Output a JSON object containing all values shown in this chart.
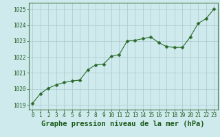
{
  "x": [
    0,
    1,
    2,
    3,
    4,
    5,
    6,
    7,
    8,
    9,
    10,
    11,
    12,
    13,
    14,
    15,
    16,
    17,
    18,
    19,
    20,
    21,
    22,
    23
  ],
  "y": [
    1019.1,
    1019.7,
    1020.05,
    1020.25,
    1020.4,
    1020.5,
    1020.55,
    1021.2,
    1021.5,
    1021.55,
    1022.05,
    1022.15,
    1023.0,
    1023.05,
    1023.15,
    1023.25,
    1022.9,
    1022.65,
    1022.6,
    1022.6,
    1023.25,
    1024.1,
    1024.4,
    1025.0
  ],
  "line_color": "#2a6b2a",
  "marker": "D",
  "marker_size": 2.5,
  "bg_color": "#ceeaed",
  "grid_color": "#aac8cc",
  "border_color": "#4a7a4a",
  "xlabel": "Graphe pression niveau de la mer (hPa)",
  "xlabel_color": "#1a5a1a",
  "xlabel_fontsize": 7.5,
  "tick_color": "#1a5a1a",
  "tick_fontsize": 5.5,
  "ylim": [
    1018.7,
    1025.4
  ],
  "yticks": [
    1019,
    1020,
    1021,
    1022,
    1023,
    1024,
    1025
  ],
  "xlim": [
    -0.5,
    23.5
  ],
  "xticks": [
    0,
    1,
    2,
    3,
    4,
    5,
    6,
    7,
    8,
    9,
    10,
    11,
    12,
    13,
    14,
    15,
    16,
    17,
    18,
    19,
    20,
    21,
    22,
    23
  ]
}
